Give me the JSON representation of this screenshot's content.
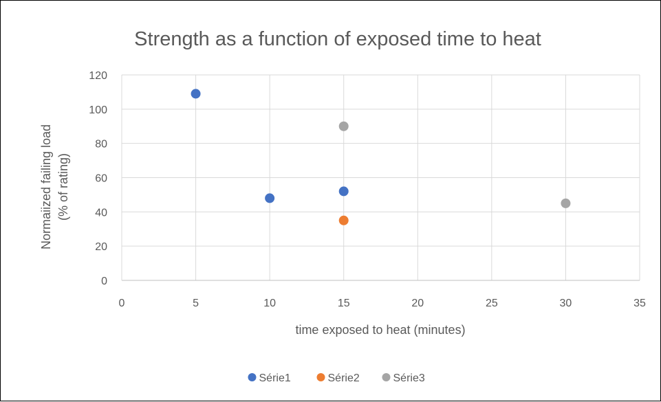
{
  "chart_data": {
    "type": "scatter",
    "title": "Strength as a function of exposed time to heat",
    "xlabel": "time exposed to heat (minutes)",
    "ylabel_lines": [
      "Normaiized failing load",
      "(% of rating)"
    ],
    "xlim": [
      0,
      35
    ],
    "ylim": [
      0,
      120
    ],
    "xticks": [
      0,
      5,
      10,
      15,
      20,
      25,
      30,
      35
    ],
    "yticks": [
      0,
      20,
      40,
      60,
      80,
      100,
      120
    ],
    "grid": true,
    "legend_position": "bottom",
    "series": [
      {
        "name": "Série1",
        "color": "#4472C4",
        "points": [
          {
            "x": 5,
            "y": 109
          },
          {
            "x": 10,
            "y": 48
          },
          {
            "x": 15,
            "y": 52
          }
        ]
      },
      {
        "name": "Série2",
        "color": "#ED7D31",
        "points": [
          {
            "x": 15,
            "y": 35
          }
        ]
      },
      {
        "name": "Série3",
        "color": "#A5A5A5",
        "points": [
          {
            "x": 15,
            "y": 90
          },
          {
            "x": 30,
            "y": 45
          }
        ]
      }
    ]
  }
}
